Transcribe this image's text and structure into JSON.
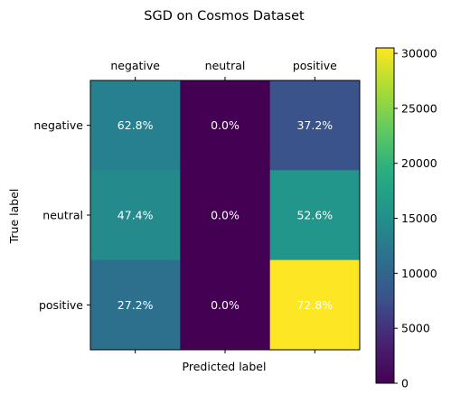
{
  "chart_data": {
    "type": "heatmap",
    "title": "SGD on Cosmos Dataset",
    "xlabel": "Predicted label",
    "ylabel": "True label",
    "x_categories": [
      "negative",
      "neutral",
      "positive"
    ],
    "y_categories": [
      "negative",
      "neutral",
      "positive"
    ],
    "cell_labels": [
      [
        "62.8%",
        "0.0%",
        "37.2%"
      ],
      [
        "47.4%",
        "0.0%",
        "52.6%"
      ],
      [
        "27.2%",
        "0.0%",
        "72.8%"
      ]
    ],
    "values": [
      [
        13200,
        0,
        7800
      ],
      [
        14400,
        0,
        16000
      ],
      [
        11400,
        0,
        30500
      ]
    ],
    "colormap": "viridis",
    "colorbar": {
      "range": [
        0,
        30500
      ],
      "ticks": [
        0,
        5000,
        10000,
        15000,
        20000,
        25000,
        30000
      ]
    },
    "x_tick_position": "top"
  }
}
